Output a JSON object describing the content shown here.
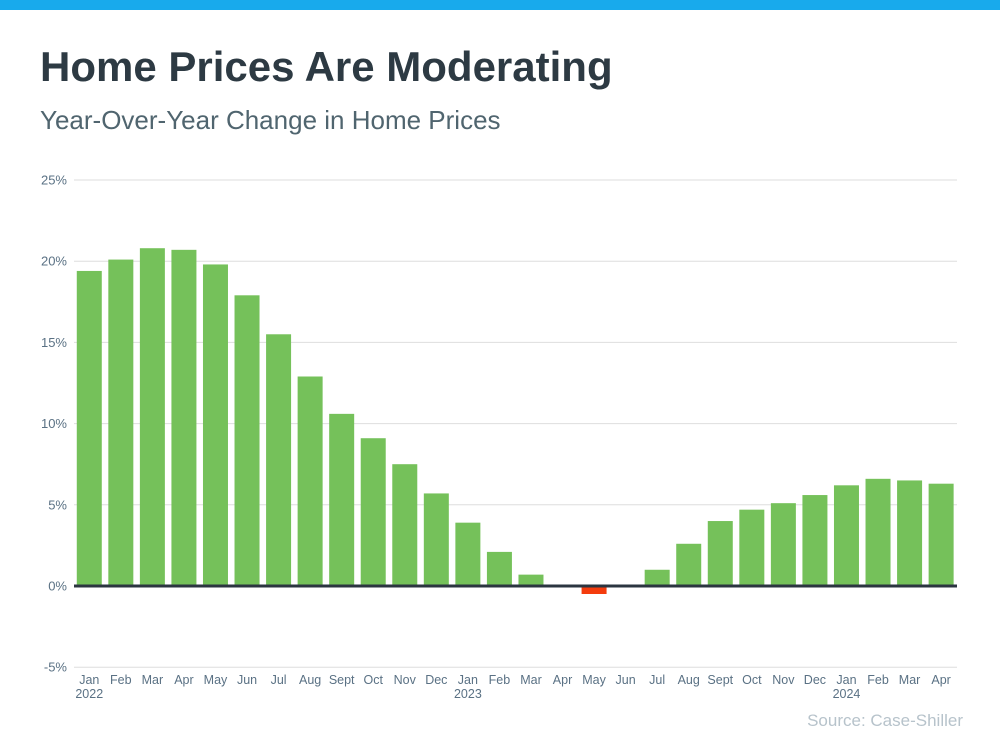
{
  "page": {
    "accent_color": "#18aaec",
    "background_color": "#ffffff"
  },
  "chart_data": {
    "type": "bar",
    "title": "Home Prices Are Moderating",
    "subtitle": "Year-Over-Year Change in Home Prices",
    "source": "Source: Case-Shiller",
    "xlabel": "",
    "ylabel": "",
    "ylim": [
      -5,
      25
    ],
    "grid": true,
    "legend": "none",
    "yticks": [
      {
        "value": 25,
        "label": "25%"
      },
      {
        "value": 20,
        "label": "20%"
      },
      {
        "value": 15,
        "label": "15%"
      },
      {
        "value": 10,
        "label": "10%"
      },
      {
        "value": 5,
        "label": "5%"
      },
      {
        "value": 0,
        "label": "0%"
      },
      {
        "value": -5,
        "label": "-5%"
      }
    ],
    "categories": [
      "Jan",
      "Feb",
      "Mar",
      "Apr",
      "May",
      "Jun",
      "Jul",
      "Aug",
      "Sept",
      "Oct",
      "Nov",
      "Dec",
      "Jan",
      "Feb",
      "Mar",
      "Apr",
      "May",
      "Jun",
      "Jul",
      "Aug",
      "Sept",
      "Oct",
      "Nov",
      "Dec",
      "Jan",
      "Feb",
      "Mar",
      "Apr"
    ],
    "year_labels": [
      {
        "index": 0,
        "label": "2022"
      },
      {
        "index": 12,
        "label": "2023"
      },
      {
        "index": 24,
        "label": "2024"
      }
    ],
    "values": [
      19.4,
      20.1,
      20.8,
      20.7,
      19.8,
      17.9,
      15.5,
      12.9,
      10.6,
      9.1,
      7.5,
      5.7,
      3.9,
      2.1,
      0.7,
      0.0,
      -0.4,
      0.0,
      1.0,
      2.6,
      4.0,
      4.7,
      5.1,
      5.6,
      6.2,
      6.6,
      6.5,
      6.3
    ],
    "positive_color": "#75c15a",
    "negative_color": "#f43c0d",
    "axis_color": "#2b3540",
    "gridline_color": "#dedede",
    "tick_label_color": "#5a7184"
  }
}
